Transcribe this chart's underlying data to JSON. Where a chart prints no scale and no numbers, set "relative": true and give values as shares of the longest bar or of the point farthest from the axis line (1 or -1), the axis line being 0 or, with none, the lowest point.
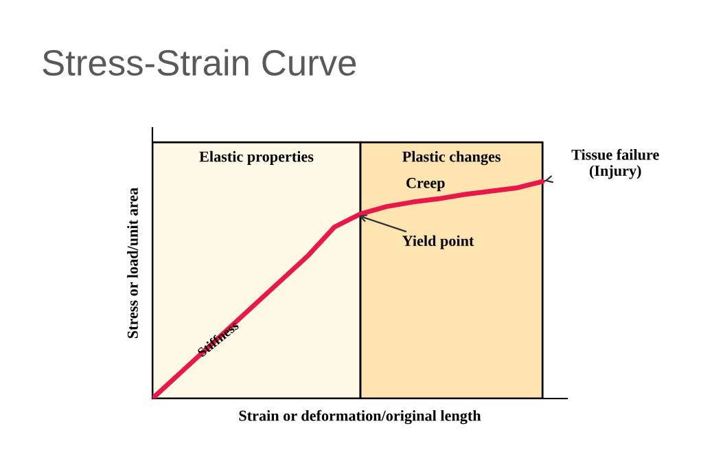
{
  "chart_data": {
    "type": "line",
    "title": "Stress-Strain Curve",
    "xlabel": "Strain or deformation/original length",
    "ylabel": "Stress or load/unit area",
    "relative": true,
    "categories": [
      null,
      null,
      null,
      null,
      null,
      null,
      null,
      null,
      null,
      null,
      null,
      null,
      null,
      null,
      null,
      null
    ],
    "series": [
      {
        "color": "#e8194a",
        "values": [
          0,
          0.11,
          0.22,
          0.33,
          0.44,
          0.55,
          0.66,
          0.79,
          0.85,
          0.884,
          0.905,
          0.92,
          0.94,
          0.955,
          0.97,
          1
        ]
      }
    ],
    "annotations": [
      "Elastic properties",
      "Plastic changes",
      "Stiffness",
      "Creep",
      "Yield point",
      "Tissue failure\n(Injury)"
    ],
    "legend": false,
    "marker": "none",
    "line_style": "solid"
  }
}
